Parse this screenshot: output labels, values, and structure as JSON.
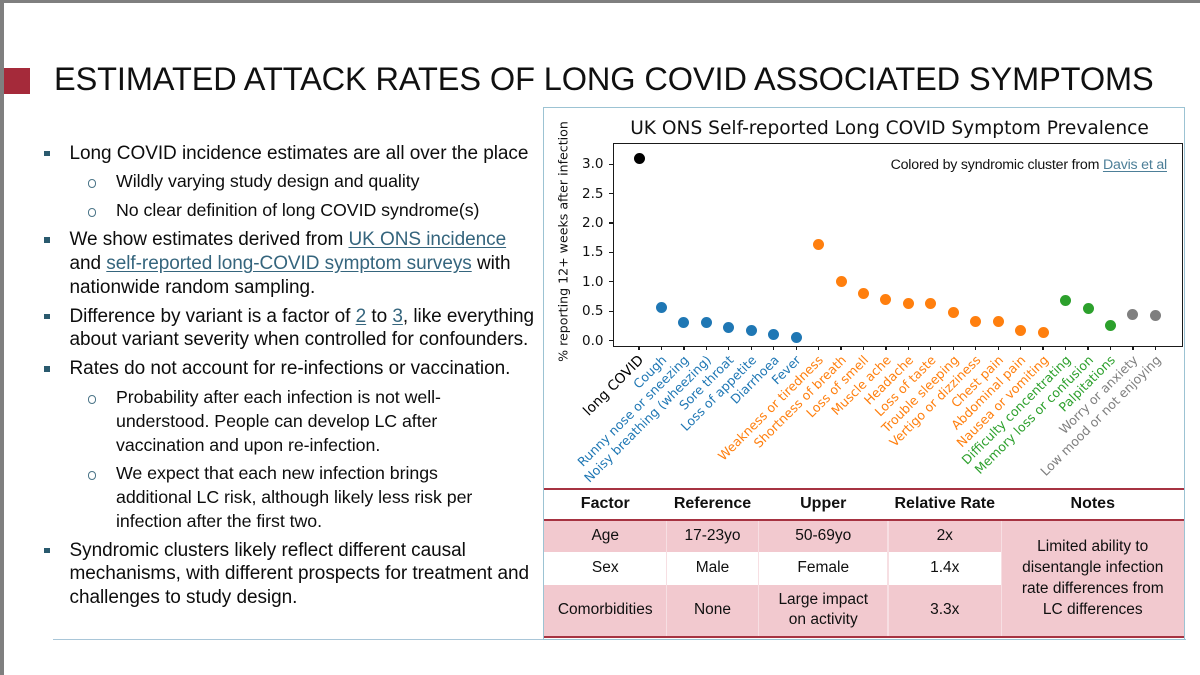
{
  "slide_title": "ESTIMATED ATTACK RATES OF LONG COVID ASSOCIATED SYMPTOMS",
  "bullets": [
    {
      "level": 1,
      "segments": [
        {
          "t": "Long COVID incidence estimates are all over the place"
        }
      ]
    },
    {
      "level": 2,
      "segments": [
        {
          "t": "Wildly varying study design and quality"
        }
      ]
    },
    {
      "level": 2,
      "segments": [
        {
          "t": "No clear definition of long COVID syndrome(s)"
        }
      ]
    },
    {
      "level": 1,
      "segments": [
        {
          "t": "We show estimates derived from "
        },
        {
          "t": "UK ONS incidence",
          "link": true,
          "name": "uk-ons-incidence-link"
        },
        {
          "t": "\nand "
        },
        {
          "t": "self-reported long-COVID symptom surveys",
          "link": true,
          "name": "symptom-surveys-link"
        },
        {
          "t": " with\nnationwide random sampling."
        }
      ]
    },
    {
      "level": 1,
      "segments": [
        {
          "t": "Difference by variant is a factor of "
        },
        {
          "t": "2",
          "link": true,
          "name": "factor-2-link"
        },
        {
          "t": " to "
        },
        {
          "t": "3",
          "link": true,
          "name": "factor-3-link"
        },
        {
          "t": ", like everything\nabout variant severity when controlled for confounders."
        }
      ]
    },
    {
      "level": 1,
      "segments": [
        {
          "t": "Rates do not account for re-infections or vaccination."
        }
      ]
    },
    {
      "level": 2,
      "segments": [
        {
          "t": "Probability after each infection is not well-\nunderstood. People can develop LC after\nvaccination and upon re-infection."
        }
      ]
    },
    {
      "level": 2,
      "segments": [
        {
          "t": "We expect that each new infection brings\nadditional LC risk, although likely less risk per\ninfection after the first two."
        }
      ]
    },
    {
      "level": 1,
      "segments": [
        {
          "t": "Syndromic clusters likely reflect different causal\nmechanisms, with different prospects for treatment and\nchallenges to study design."
        }
      ]
    }
  ],
  "chart_data": {
    "type": "scatter",
    "title": "UK ONS Self-reported Long COVID Symptom Prevalence",
    "ylabel": "% reporting 12+ weeks after infection",
    "ylim": [
      -0.09,
      3.34
    ],
    "yticks": [
      "0.0",
      "0.5",
      "1.0",
      "1.5",
      "2.0",
      "2.5",
      "3.0"
    ],
    "annotation": {
      "prefix": "Colored by syndromic cluster from ",
      "link": "Davis et al"
    },
    "legend_position": "none",
    "grid": false,
    "points": [
      {
        "label": "long COVID",
        "value": 3.1,
        "cluster": "overall"
      },
      {
        "label": "Cough",
        "value": 0.56,
        "cluster": "respiratory"
      },
      {
        "label": "Runny nose or sneezing",
        "value": 0.3,
        "cluster": "respiratory"
      },
      {
        "label": "Noisy breathing (wheezing)",
        "value": 0.3,
        "cluster": "respiratory"
      },
      {
        "label": "Sore throat",
        "value": 0.23,
        "cluster": "respiratory"
      },
      {
        "label": "Loss of appetite",
        "value": 0.18,
        "cluster": "respiratory"
      },
      {
        "label": "Diarrhoea",
        "value": 0.1,
        "cluster": "respiratory"
      },
      {
        "label": "Fever",
        "value": 0.06,
        "cluster": "respiratory"
      },
      {
        "label": "Weakness or tiredness",
        "value": 1.63,
        "cluster": "systemic"
      },
      {
        "label": "Shortness of breath",
        "value": 1.01,
        "cluster": "systemic"
      },
      {
        "label": "Loss of smell",
        "value": 0.8,
        "cluster": "systemic"
      },
      {
        "label": "Muscle ache",
        "value": 0.7,
        "cluster": "systemic"
      },
      {
        "label": "Headache",
        "value": 0.63,
        "cluster": "systemic"
      },
      {
        "label": "Loss of taste",
        "value": 0.63,
        "cluster": "systemic"
      },
      {
        "label": "Trouble sleeping",
        "value": 0.48,
        "cluster": "systemic"
      },
      {
        "label": "Vertigo or dizziness",
        "value": 0.33,
        "cluster": "systemic"
      },
      {
        "label": "Chest pain",
        "value": 0.32,
        "cluster": "systemic"
      },
      {
        "label": "Abdominal pain",
        "value": 0.17,
        "cluster": "systemic"
      },
      {
        "label": "Nausea or vomiting",
        "value": 0.14,
        "cluster": "systemic"
      },
      {
        "label": "Difficulty concentrating",
        "value": 0.68,
        "cluster": "neurologic"
      },
      {
        "label": "Memory loss or confusion",
        "value": 0.54,
        "cluster": "neurologic"
      },
      {
        "label": "Palpitations",
        "value": 0.26,
        "cluster": "neurologic"
      },
      {
        "label": "Worry or anxiety",
        "value": 0.44,
        "cluster": "mood"
      },
      {
        "label": "Low mood or not enjoying",
        "value": 0.42,
        "cluster": "mood"
      }
    ],
    "cluster_colors": {
      "overall": "#000000",
      "respiratory": "#1f77b4",
      "systemic": "#ff7f0e",
      "neurologic": "#2ca02c",
      "mood": "#7f7f7f"
    }
  },
  "table": {
    "headers": [
      "Factor",
      "Reference",
      "Upper",
      "Relative Rate",
      "Notes"
    ],
    "rows": [
      {
        "factor": "Age",
        "reference": "17-23yo",
        "upper": "50-69yo",
        "rate": "2x"
      },
      {
        "factor": "Sex",
        "reference": "Male",
        "upper": "Female",
        "rate": "1.4x"
      },
      {
        "factor": "Comorbidities",
        "reference": "None",
        "upper": "Large impact\non activity",
        "rate": "3.3x"
      }
    ],
    "notes": "Limited ability to\ndisentangle infection\nrate differences from\nLC differences"
  },
  "colors": {
    "frame_gray": "#7f7f7f",
    "accent_red": "#a52a3a",
    "link_teal": "#35657d",
    "chart_link_teal": "#4d7f98",
    "bullet_square": "#2a5a6e",
    "bullet_circle": "#4a7487",
    "panel_border": "#9cc3d3",
    "divider_blue": "#a9c6d8",
    "table_pink": "#f2c9cf",
    "table_red": "#a63241",
    "cell_sep": "#f7dfe3"
  }
}
